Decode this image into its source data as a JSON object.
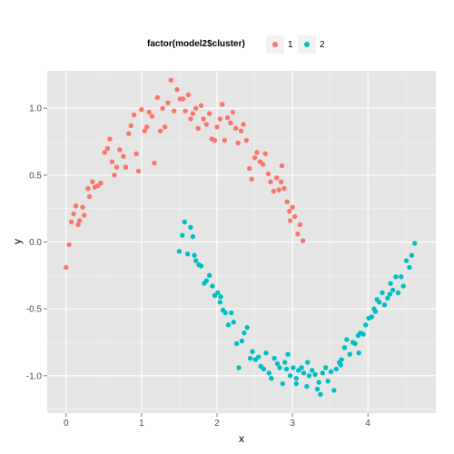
{
  "chart_data": {
    "type": "scatter",
    "xlabel": "x",
    "ylabel": "y",
    "xlim": [
      -0.25,
      4.9
    ],
    "ylim": [
      -1.28,
      1.28
    ],
    "x_ticks": [
      0,
      1,
      2,
      3,
      4
    ],
    "x_tick_labels": [
      "0",
      "1",
      "2",
      "3",
      "4"
    ],
    "y_ticks": [
      -1.0,
      -0.5,
      0.0,
      0.5,
      1.0
    ],
    "y_tick_labels": [
      "-1.0",
      "-0.5",
      "0.0",
      "0.5",
      "1.0"
    ],
    "grid": true,
    "legend": {
      "title": "factor(model2$cluster)",
      "position": "top",
      "entries": [
        "1",
        "2"
      ]
    },
    "series": [
      {
        "name": "1",
        "color": "#F8766D",
        "points": [
          [
            0.0,
            -0.19
          ],
          [
            0.04,
            -0.02
          ],
          [
            0.07,
            0.15
          ],
          [
            0.1,
            0.21
          ],
          [
            0.13,
            0.27
          ],
          [
            0.16,
            0.13
          ],
          [
            0.18,
            0.16
          ],
          [
            0.22,
            0.26
          ],
          [
            0.24,
            0.2
          ],
          [
            0.29,
            0.4
          ],
          [
            0.31,
            0.34
          ],
          [
            0.35,
            0.45
          ],
          [
            0.38,
            0.41
          ],
          [
            0.42,
            0.42
          ],
          [
            0.46,
            0.44
          ],
          [
            0.51,
            0.67
          ],
          [
            0.55,
            0.7
          ],
          [
            0.58,
            0.77
          ],
          [
            0.61,
            0.6
          ],
          [
            0.64,
            0.5
          ],
          [
            0.67,
            0.56
          ],
          [
            0.71,
            0.69
          ],
          [
            0.76,
            0.64
          ],
          [
            0.79,
            0.56
          ],
          [
            0.83,
            0.81
          ],
          [
            0.86,
            0.87
          ],
          [
            0.9,
            0.95
          ],
          [
            0.93,
            0.66
          ],
          [
            0.96,
            0.53
          ],
          [
            1.0,
            0.99
          ],
          [
            1.04,
            0.83
          ],
          [
            1.07,
            0.86
          ],
          [
            1.1,
            0.97
          ],
          [
            1.14,
            0.94
          ],
          [
            1.17,
            0.59
          ],
          [
            1.21,
            1.08
          ],
          [
            1.25,
            0.83
          ],
          [
            1.28,
            1.0
          ],
          [
            1.31,
            0.86
          ],
          [
            1.35,
            1.04
          ],
          [
            1.39,
            1.21
          ],
          [
            1.43,
            0.98
          ],
          [
            1.47,
            1.14
          ],
          [
            1.51,
            1.07
          ],
          [
            1.55,
            1.07
          ],
          [
            1.58,
            0.98
          ],
          [
            1.62,
            1.1
          ],
          [
            1.65,
            0.92
          ],
          [
            1.68,
            0.96
          ],
          [
            1.72,
            1.0
          ],
          [
            1.75,
            0.85
          ],
          [
            1.79,
            1.02
          ],
          [
            1.82,
            0.92
          ],
          [
            1.86,
            0.88
          ],
          [
            1.9,
            0.96
          ],
          [
            1.93,
            0.77
          ],
          [
            1.97,
            0.76
          ],
          [
            2.0,
            0.86
          ],
          [
            2.04,
            0.92
          ],
          [
            2.07,
            1.03
          ],
          [
            2.1,
            0.76
          ],
          [
            2.14,
            0.93
          ],
          [
            2.18,
            0.89
          ],
          [
            2.21,
            0.97
          ],
          [
            2.25,
            0.85
          ],
          [
            2.28,
            0.74
          ],
          [
            2.32,
            0.83
          ],
          [
            2.35,
            0.88
          ],
          [
            2.39,
            0.76
          ],
          [
            2.43,
            0.55
          ],
          [
            2.46,
            0.47
          ],
          [
            2.5,
            0.63
          ],
          [
            2.53,
            0.67
          ],
          [
            2.57,
            0.6
          ],
          [
            2.61,
            0.58
          ],
          [
            2.64,
            0.66
          ],
          [
            2.68,
            0.51
          ],
          [
            2.71,
            0.45
          ],
          [
            2.75,
            0.38
          ],
          [
            2.79,
            0.48
          ],
          [
            2.82,
            0.39
          ],
          [
            2.86,
            0.57
          ],
          [
            2.89,
            0.4
          ],
          [
            2.93,
            0.3
          ],
          [
            2.96,
            0.23
          ],
          [
            3.0,
            0.26
          ],
          [
            3.03,
            0.19
          ],
          [
            3.07,
            0.06
          ],
          [
            3.1,
            0.13
          ],
          [
            3.14,
            0.01
          ],
          [
            2.85,
            0.45
          ],
          [
            2.97,
            0.16
          ]
        ]
      },
      {
        "name": "2",
        "color": "#00BFC4",
        "points": [
          [
            1.5,
            -0.07
          ],
          [
            1.54,
            0.05
          ],
          [
            1.57,
            0.15
          ],
          [
            1.61,
            -0.09
          ],
          [
            1.65,
            0.11
          ],
          [
            1.68,
            0.04
          ],
          [
            1.72,
            -0.14
          ],
          [
            1.76,
            -0.17
          ],
          [
            1.79,
            -0.18
          ],
          [
            1.83,
            -0.31
          ],
          [
            1.86,
            -0.29
          ],
          [
            1.9,
            -0.25
          ],
          [
            1.94,
            -0.33
          ],
          [
            1.97,
            -0.4
          ],
          [
            2.01,
            -0.38
          ],
          [
            2.04,
            -0.45
          ],
          [
            2.08,
            -0.51
          ],
          [
            2.11,
            -0.53
          ],
          [
            2.15,
            -0.62
          ],
          [
            2.19,
            -0.53
          ],
          [
            2.22,
            -0.6
          ],
          [
            2.26,
            -0.76
          ],
          [
            2.29,
            -0.94
          ],
          [
            2.33,
            -0.74
          ],
          [
            2.36,
            -0.68
          ],
          [
            2.4,
            -0.64
          ],
          [
            2.44,
            -0.87
          ],
          [
            2.47,
            -0.82
          ],
          [
            2.51,
            -0.88
          ],
          [
            2.55,
            -0.86
          ],
          [
            2.58,
            -0.93
          ],
          [
            2.62,
            -0.95
          ],
          [
            2.65,
            -0.83
          ],
          [
            2.69,
            -0.98
          ],
          [
            2.72,
            -1.02
          ],
          [
            2.76,
            -0.87
          ],
          [
            2.8,
            -0.91
          ],
          [
            2.83,
            -0.94
          ],
          [
            2.87,
            -1.06
          ],
          [
            2.9,
            -0.9
          ],
          [
            2.94,
            -0.84
          ],
          [
            2.97,
            -1.0
          ],
          [
            3.01,
            -0.94
          ],
          [
            3.05,
            -1.06
          ],
          [
            3.08,
            -0.96
          ],
          [
            3.12,
            -0.94
          ],
          [
            3.15,
            -0.98
          ],
          [
            3.19,
            -1.08
          ],
          [
            3.22,
            -1.0
          ],
          [
            3.26,
            -0.96
          ],
          [
            3.3,
            -0.99
          ],
          [
            3.33,
            -1.1
          ],
          [
            3.37,
            -1.14
          ],
          [
            3.4,
            -0.98
          ],
          [
            3.44,
            -0.94
          ],
          [
            3.47,
            -1.04
          ],
          [
            3.51,
            -0.97
          ],
          [
            3.55,
            -1.11
          ],
          [
            3.58,
            -0.95
          ],
          [
            3.62,
            -0.9
          ],
          [
            3.65,
            -0.88
          ],
          [
            3.69,
            -0.79
          ],
          [
            3.72,
            -0.73
          ],
          [
            3.76,
            -0.84
          ],
          [
            3.8,
            -0.75
          ],
          [
            3.83,
            -0.76
          ],
          [
            3.87,
            -0.7
          ],
          [
            3.9,
            -0.68
          ],
          [
            3.94,
            -0.69
          ],
          [
            3.97,
            -0.62
          ],
          [
            4.01,
            -0.57
          ],
          [
            4.05,
            -0.56
          ],
          [
            4.08,
            -0.5
          ],
          [
            4.12,
            -0.43
          ],
          [
            4.15,
            -0.45
          ],
          [
            4.19,
            -0.38
          ],
          [
            4.22,
            -0.47
          ],
          [
            4.26,
            -0.42
          ],
          [
            4.3,
            -0.31
          ],
          [
            4.33,
            -0.36
          ],
          [
            4.37,
            -0.26
          ],
          [
            4.4,
            -0.38
          ],
          [
            4.44,
            -0.26
          ],
          [
            4.47,
            -0.33
          ],
          [
            4.51,
            -0.14
          ],
          [
            4.55,
            -0.19
          ],
          [
            4.58,
            -0.1
          ],
          [
            4.62,
            -0.01
          ],
          [
            3.05,
            -1.02
          ],
          [
            3.35,
            -1.05
          ],
          [
            2.92,
            -0.95
          ],
          [
            3.64,
            -0.92
          ],
          [
            4.1,
            -0.52
          ],
          [
            4.29,
            -0.39
          ],
          [
            3.88,
            -0.83
          ],
          [
            1.7,
            -0.1
          ],
          [
            2.05,
            -0.41
          ],
          [
            3.2,
            -0.9
          ]
        ]
      }
    ]
  }
}
